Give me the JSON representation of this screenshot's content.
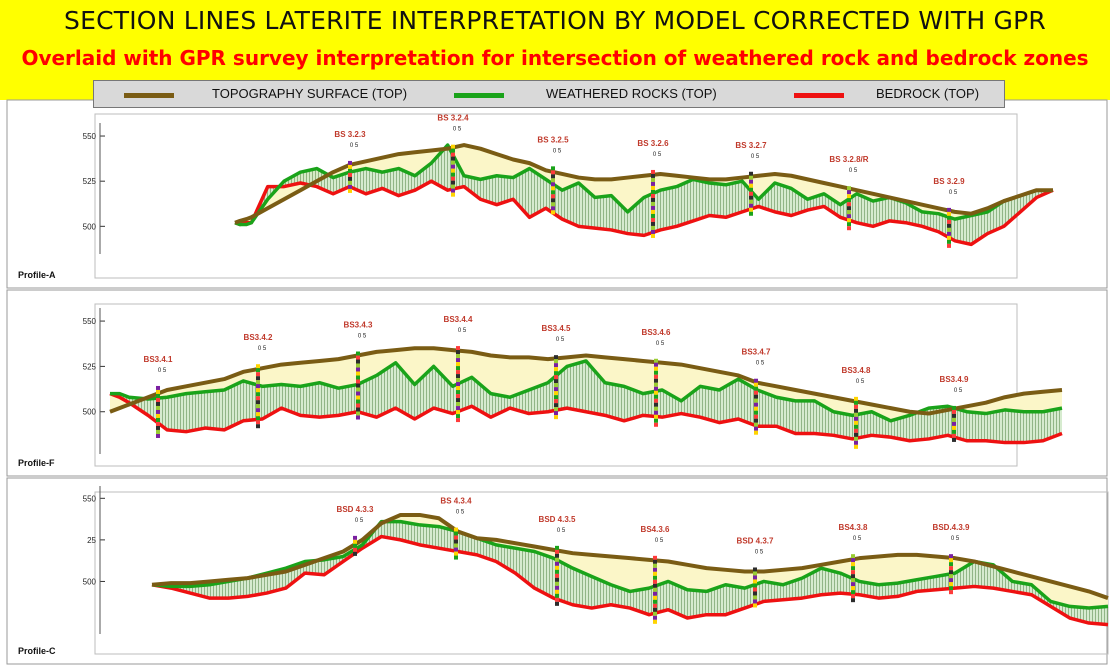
{
  "title": "SECTION LINES LATERITE INTERPRETATION BY MODEL CORRECTED WITH GPR",
  "subtitle": "Overlaid with GPR survey interpretation for intersection of weathered rock and bedrock zones",
  "colors": {
    "topography": "#7a5c14",
    "weathered": "#1aa31a",
    "bedrock": "#ee1111",
    "header_bg": "#ffff00",
    "subtitle": "#ff0000",
    "label": "#c0392b"
  },
  "legend": [
    {
      "label": "TOPOGRAPHY SURFACE (TOP)",
      "color": "#7a5c14"
    },
    {
      "label": "WEATHERED ROCKS (TOP)",
      "color": "#1aa31a"
    },
    {
      "label": "BEDROCK (TOP)",
      "color": "#ee1111"
    }
  ],
  "chart_data": [
    {
      "type": "line",
      "profile": "Profile-A",
      "y_ticks": [
        "550",
        "525",
        "500"
      ],
      "ylim": [
        488,
        555
      ],
      "x": [
        0,
        3,
        7,
        10,
        20,
        30,
        40,
        50,
        60,
        70,
        80,
        90,
        100,
        110,
        120,
        130,
        140,
        150,
        160,
        170,
        180,
        190,
        200,
        210,
        220,
        230,
        240,
        250,
        260,
        270,
        280,
        290,
        300,
        310,
        320,
        330,
        340,
        350,
        360,
        370,
        380,
        390,
        400,
        410,
        420,
        430,
        440,
        450,
        460,
        470,
        480,
        490,
        500
      ],
      "series": [
        {
          "key": "topography",
          "values": [
            502,
            503,
            504,
            505,
            510,
            515,
            520,
            525,
            530,
            534,
            536,
            538,
            540,
            541,
            542,
            543,
            545,
            543,
            540,
            537,
            535,
            531,
            529,
            527,
            526,
            526,
            527,
            528,
            529,
            528,
            527,
            526,
            526,
            527,
            528,
            529,
            528,
            526,
            524,
            522,
            520,
            518,
            516,
            514,
            512,
            510,
            508,
            507,
            510,
            514,
            517,
            520,
            520
          ]
        },
        {
          "key": "weathered",
          "values": [
            502,
            501,
            501,
            502,
            515,
            525,
            530,
            532,
            527,
            530,
            532,
            530,
            532,
            528,
            535,
            545,
            528,
            526,
            528,
            527,
            532,
            526,
            520,
            524,
            516,
            517,
            508,
            516,
            520,
            522,
            526,
            524,
            523,
            525,
            515,
            524,
            521,
            515,
            518,
            512,
            518,
            514,
            516,
            513,
            508,
            507,
            504,
            506,
            508,
            514,
            517,
            520,
            520
          ]
        },
        {
          "key": "bedrock",
          "values": [
            502,
            501,
            502,
            502,
            522,
            522,
            524,
            522,
            518,
            522,
            518,
            521,
            517,
            520,
            525,
            520,
            522,
            515,
            512,
            515,
            505,
            510,
            504,
            500,
            499,
            498,
            496,
            495,
            498,
            500,
            503,
            506,
            505,
            508,
            511,
            508,
            506,
            509,
            511,
            505,
            502,
            500,
            503,
            502,
            500,
            497,
            492,
            490,
            496,
            500,
            508,
            516,
            520
          ]
        }
      ],
      "boreholes": [
        {
          "label": "BS 3.2.3",
          "x": 115
        },
        {
          "label": "BS 3.2.4",
          "x": 218
        },
        {
          "label": "BS 3.2.5",
          "x": 318
        },
        {
          "label": "BS 3.2.6",
          "x": 418
        },
        {
          "label": "BS 3.2.7",
          "x": 516
        },
        {
          "label": "BS 3.2.8/R",
          "x": 614
        },
        {
          "label": "BS 3.2.9",
          "x": 714
        }
      ]
    },
    {
      "type": "line",
      "profile": "Profile-F",
      "y_ticks": [
        "550",
        "525",
        "500"
      ],
      "ylim": [
        480,
        555
      ],
      "x": [
        0,
        5,
        10,
        20,
        30,
        40,
        50,
        60,
        70,
        80,
        90,
        100,
        110,
        120,
        130,
        140,
        150,
        160,
        170,
        180,
        190,
        200,
        210,
        220,
        230,
        240,
        250,
        260,
        270,
        280,
        290,
        300,
        310,
        320,
        330,
        340,
        350,
        360,
        370,
        380,
        390,
        400,
        410,
        420,
        430,
        440,
        450,
        460,
        470,
        480,
        490,
        500
      ],
      "series": [
        {
          "key": "topography",
          "values": [
            500,
            502,
            504,
            508,
            512,
            514,
            516,
            518,
            522,
            524,
            526,
            527,
            528,
            529,
            531,
            533,
            534,
            535,
            535,
            534,
            533,
            531,
            530,
            530,
            529,
            530,
            531,
            530,
            529,
            528,
            527,
            526,
            524,
            522,
            520,
            516,
            514,
            512,
            510,
            508,
            506,
            504,
            502,
            500,
            499,
            501,
            503,
            505,
            508,
            510,
            511,
            512
          ]
        },
        {
          "key": "weathered",
          "values": [
            510,
            510,
            508,
            507,
            508,
            510,
            511,
            512,
            517,
            514,
            515,
            514,
            516,
            513,
            515,
            520,
            527,
            515,
            525,
            514,
            519,
            510,
            508,
            512,
            516,
            525,
            528,
            516,
            514,
            510,
            512,
            506,
            514,
            512,
            518,
            512,
            508,
            506,
            506,
            500,
            498,
            500,
            495,
            498,
            502,
            503,
            500,
            499,
            501,
            500,
            500,
            502
          ]
        },
        {
          "key": "bedrock",
          "values": [
            510,
            508,
            505,
            498,
            490,
            489,
            491,
            490,
            495,
            496,
            502,
            498,
            497,
            498,
            500,
            497,
            502,
            496,
            502,
            499,
            503,
            497,
            502,
            499,
            500,
            502,
            500,
            498,
            495,
            498,
            497,
            499,
            497,
            494,
            496,
            492,
            492,
            488,
            488,
            487,
            485,
            487,
            486,
            484,
            485,
            487,
            484,
            484,
            483,
            483,
            484,
            488
          ]
        }
      ],
      "boreholes": [
        {
          "label": "BS3.4.1",
          "x": 16
        },
        {
          "label": "BS3.4.2",
          "x": 116
        },
        {
          "label": "BS3.4.3",
          "x": 216
        },
        {
          "label": "BS3.4.4",
          "x": 316
        },
        {
          "label": "BS3.4.5",
          "x": 414
        },
        {
          "label": "BS3.4.6",
          "x": 514
        },
        {
          "label": "BS3.4.7",
          "x": 614
        },
        {
          "label": "BS3.4.8",
          "x": 714
        },
        {
          "label": "BS3.4.9",
          "x": 812
        }
      ]
    },
    {
      "type": "line",
      "profile": "Profile-C",
      "y_ticks": [
        "550",
        "25",
        "500"
      ],
      "ylim": [
        472,
        555
      ],
      "x": [
        0,
        10,
        20,
        30,
        40,
        50,
        60,
        70,
        80,
        90,
        100,
        110,
        120,
        130,
        140,
        150,
        160,
        170,
        180,
        190,
        200,
        210,
        220,
        230,
        240,
        250,
        260,
        270,
        280,
        290,
        300,
        310,
        320,
        330,
        340,
        350,
        360,
        370,
        380,
        390,
        400,
        410,
        420,
        430,
        440,
        450,
        460,
        470,
        480,
        490,
        500
      ],
      "series": [
        {
          "key": "topography",
          "values": [
            498,
            499,
            499,
            500,
            501,
            502,
            504,
            506,
            510,
            514,
            518,
            525,
            535,
            540,
            540,
            538,
            530,
            526,
            525,
            523,
            521,
            519,
            517,
            516,
            515,
            514,
            513,
            512,
            510,
            508,
            507,
            506,
            506,
            507,
            508,
            510,
            512,
            514,
            515,
            516,
            516,
            515,
            514,
            512,
            509,
            506,
            503,
            500,
            497,
            494,
            490
          ]
        },
        {
          "key": "weathered",
          "values": [
            498,
            497,
            497,
            498,
            500,
            502,
            505,
            508,
            512,
            513,
            515,
            522,
            536,
            536,
            534,
            533,
            530,
            526,
            522,
            520,
            518,
            514,
            508,
            503,
            498,
            494,
            496,
            500,
            495,
            494,
            498,
            496,
            500,
            498,
            502,
            508,
            505,
            500,
            498,
            499,
            501,
            503,
            505,
            512,
            510,
            500,
            498,
            488,
            485,
            484,
            485
          ]
        },
        {
          "key": "bedrock",
          "values": [
            498,
            496,
            493,
            490,
            490,
            491,
            493,
            496,
            505,
            504,
            512,
            520,
            527,
            525,
            522,
            520,
            518,
            516,
            512,
            505,
            496,
            490,
            486,
            484,
            486,
            484,
            480,
            483,
            478,
            480,
            480,
            484,
            488,
            489,
            490,
            492,
            493,
            492,
            490,
            491,
            494,
            495,
            496,
            497,
            496,
            494,
            492,
            485,
            478,
            475,
            474
          ]
        }
      ],
      "boreholes": [
        {
          "label": "BSD 4.3.3",
          "x": 152
        },
        {
          "label": "BS 4.3.4",
          "x": 253
        },
        {
          "label": "BSD 4.3.5",
          "x": 354
        },
        {
          "label": "BS4.3.6",
          "x": 452
        },
        {
          "label": "BSD 4.3.7",
          "x": 552
        },
        {
          "label": "BS4.3.8",
          "x": 650
        },
        {
          "label": "BSD.4.3.9",
          "x": 748
        }
      ]
    }
  ]
}
